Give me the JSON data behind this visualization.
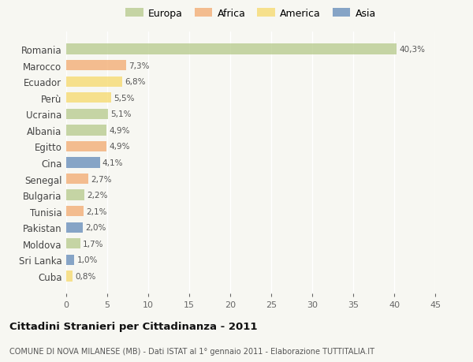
{
  "countries": [
    "Romania",
    "Marocco",
    "Ecuador",
    "Perù",
    "Ucraina",
    "Albania",
    "Egitto",
    "Cina",
    "Senegal",
    "Bulgaria",
    "Tunisia",
    "Pakistan",
    "Moldova",
    "Sri Lanka",
    "Cuba"
  ],
  "values": [
    40.3,
    7.3,
    6.8,
    5.5,
    5.1,
    4.9,
    4.9,
    4.1,
    2.7,
    2.2,
    2.1,
    2.0,
    1.7,
    1.0,
    0.8
  ],
  "labels": [
    "40,3%",
    "7,3%",
    "6,8%",
    "5,5%",
    "5,1%",
    "4,9%",
    "4,9%",
    "4,1%",
    "2,7%",
    "2,2%",
    "2,1%",
    "2,0%",
    "1,7%",
    "1,0%",
    "0,8%"
  ],
  "continents": [
    "Europa",
    "Africa",
    "America",
    "America",
    "Europa",
    "Europa",
    "Africa",
    "Asia",
    "Africa",
    "Europa",
    "Africa",
    "Asia",
    "Europa",
    "Asia",
    "America"
  ],
  "colors": {
    "Europa": "#b5c98a",
    "Africa": "#f2a96e",
    "America": "#f6d96a",
    "Asia": "#6188b8"
  },
  "xlim": [
    0,
    45
  ],
  "xticks": [
    0,
    5,
    10,
    15,
    20,
    25,
    30,
    35,
    40,
    45
  ],
  "title": "Cittadini Stranieri per Cittadinanza - 2011",
  "subtitle": "COMUNE DI NOVA MILANESE (MB) - Dati ISTAT al 1° gennaio 2011 - Elaborazione TUTTITALIA.IT",
  "background_color": "#f7f7f2",
  "grid_color": "#ffffff",
  "bar_alpha": 0.75
}
